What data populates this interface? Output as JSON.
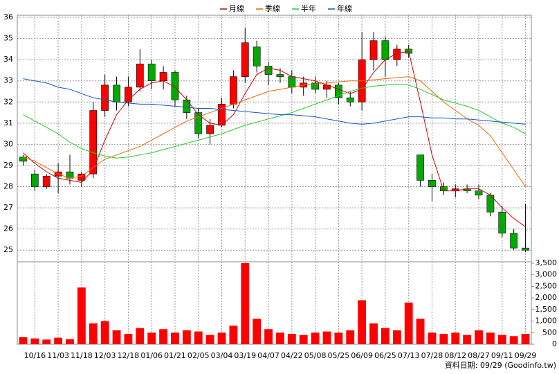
{
  "chart_data": {
    "type": "candlestick",
    "categories": [
      null,
      "10/16",
      null,
      "11/03",
      null,
      "11/18",
      null,
      "12/03",
      null,
      "12/18",
      null,
      "01/06",
      null,
      "01/21",
      null,
      "02/05",
      null,
      "03/04",
      null,
      "03/19",
      null,
      "04/07",
      null,
      "04/22",
      null,
      "05/08",
      null,
      "05/25",
      null,
      "06/09",
      null,
      "06/25",
      null,
      "07/13",
      null,
      "07/28",
      null,
      "08/12",
      null,
      "08/27",
      null,
      "09/11",
      null,
      "09/29"
    ],
    "open": [
      29.4,
      28.6,
      28.0,
      28.5,
      28.7,
      28.3,
      28.6,
      31.6,
      32.8,
      32.0,
      32.7,
      33.8,
      33.0,
      33.4,
      32.1,
      31.5,
      30.5,
      30.9,
      31.9,
      33.2,
      34.6,
      33.7,
      33.3,
      33.2,
      32.7,
      32.9,
      32.6,
      32.8,
      32.2,
      32.0,
      34.0,
      34.9,
      34.0,
      34.5,
      29.5,
      28.3,
      28.0,
      27.8,
      27.9,
      27.8,
      27.6,
      26.8,
      25.8,
      25.1
    ],
    "high": [
      29.5,
      28.8,
      28.6,
      29.1,
      29.5,
      28.7,
      32.0,
      33.3,
      33.2,
      33.2,
      34.5,
      34.0,
      33.7,
      33.5,
      32.3,
      31.7,
      31.2,
      32.2,
      33.5,
      35.5,
      34.9,
      33.9,
      33.6,
      33.5,
      33.2,
      33.2,
      33.0,
      32.9,
      32.5,
      35.3,
      35.3,
      35.1,
      34.7,
      34.7,
      29.5,
      28.6,
      28.2,
      28.1,
      28.1,
      28.1,
      27.7,
      27.1,
      26.0,
      27.2
    ],
    "low": [
      29.0,
      27.8,
      27.9,
      27.7,
      28.1,
      28.0,
      28.4,
      31.3,
      31.6,
      31.8,
      32.5,
      32.6,
      32.6,
      31.8,
      31.2,
      30.3,
      30.0,
      30.8,
      31.7,
      32.9,
      33.4,
      32.8,
      32.9,
      32.4,
      32.3,
      32.4,
      32.2,
      31.9,
      31.8,
      31.6,
      33.5,
      33.2,
      33.7,
      34.1,
      28.0,
      27.3,
      27.6,
      27.5,
      27.7,
      27.4,
      26.6,
      25.6,
      25.0,
      24.9
    ],
    "close": [
      29.2,
      28.0,
      28.5,
      28.7,
      28.4,
      28.6,
      31.6,
      32.8,
      32.0,
      32.7,
      33.8,
      33.0,
      33.4,
      32.1,
      31.5,
      30.5,
      30.9,
      31.9,
      33.2,
      34.8,
      33.7,
      33.3,
      33.2,
      32.7,
      32.9,
      32.6,
      32.8,
      32.2,
      32.0,
      34.0,
      34.9,
      34.0,
      34.5,
      34.3,
      28.3,
      28.0,
      27.8,
      27.9,
      27.8,
      27.6,
      26.8,
      25.8,
      25.1,
      25.0
    ],
    "up_color": "#ff0000",
    "down_color": "#00aa00",
    "ylim": [
      24.45,
      36.1
    ],
    "yticks": [
      25,
      26,
      27,
      28,
      29,
      30,
      31,
      32,
      33,
      34,
      35,
      36
    ],
    "grid": true,
    "series": [
      {
        "name": "月線",
        "color": "#cc0000",
        "values": [
          29.6,
          29.1,
          28.7,
          28.4,
          28.3,
          28.2,
          28.8,
          30.2,
          31.4,
          32.1,
          32.6,
          32.9,
          33.0,
          32.7,
          32.1,
          31.4,
          31.0,
          30.9,
          31.4,
          32.4,
          33.3,
          33.6,
          33.5,
          33.2,
          33.1,
          33.0,
          32.8,
          32.6,
          32.4,
          32.6,
          33.4,
          34.0,
          34.3,
          34.4,
          32.0,
          29.5,
          27.8,
          27.8,
          27.9,
          27.9,
          27.6,
          27.0,
          26.5,
          26.1
        ]
      },
      {
        "name": "季線",
        "color": "#ee6600",
        "values": [
          29.4,
          29.2,
          28.9,
          28.6,
          28.4,
          28.5,
          28.9,
          29.3,
          29.5,
          29.7,
          29.9,
          30.2,
          30.5,
          30.8,
          31.1,
          31.3,
          31.5,
          31.7,
          31.9,
          32.1,
          32.3,
          32.5,
          32.6,
          32.7,
          32.8,
          32.85,
          32.9,
          32.95,
          33.0,
          33.0,
          33.05,
          33.1,
          33.15,
          33.2,
          33.0,
          32.5,
          32.0,
          31.6,
          31.2,
          30.9,
          30.4,
          29.6,
          28.8,
          28.0
        ]
      },
      {
        "name": "半年",
        "color": "#22cc22",
        "values": [
          31.4,
          31.1,
          30.8,
          30.5,
          30.1,
          29.8,
          29.6,
          29.45,
          29.35,
          29.4,
          29.5,
          29.6,
          29.75,
          29.9,
          30.05,
          30.2,
          30.35,
          30.5,
          30.7,
          30.9,
          31.05,
          31.2,
          31.35,
          31.5,
          31.7,
          31.9,
          32.1,
          32.3,
          32.5,
          32.65,
          32.75,
          32.8,
          32.85,
          32.8,
          32.6,
          32.35,
          32.1,
          31.95,
          31.8,
          31.6,
          31.3,
          31.0,
          30.8,
          30.5
        ]
      },
      {
        "name": "年線",
        "color": "#1155cc",
        "values": [
          33.1,
          33.0,
          32.9,
          32.7,
          32.6,
          32.4,
          32.2,
          32.1,
          32.0,
          31.95,
          31.9,
          31.9,
          31.85,
          31.8,
          31.75,
          31.7,
          31.7,
          31.65,
          31.6,
          31.55,
          31.5,
          31.45,
          31.4,
          31.4,
          31.35,
          31.3,
          31.2,
          31.1,
          31.0,
          30.95,
          31.0,
          31.1,
          31.2,
          31.3,
          31.3,
          31.25,
          31.25,
          31.2,
          31.2,
          31.15,
          31.1,
          31.05,
          31.0,
          30.95
        ]
      }
    ],
    "volume": {
      "color": "#ff0000",
      "values": [
        300,
        250,
        200,
        280,
        220,
        2450,
        900,
        1000,
        600,
        450,
        700,
        500,
        650,
        500,
        600,
        550,
        400,
        500,
        800,
        3500,
        1100,
        650,
        500,
        450,
        400,
        500,
        550,
        500,
        600,
        1900,
        900,
        700,
        600,
        1800,
        1100,
        500,
        450,
        500,
        400,
        600,
        500,
        400,
        350,
        450
      ],
      "ylim": [
        0,
        3500
      ],
      "yticks": [
        0,
        500,
        {
          "value": 1000,
          "label": "1,000"
        },
        {
          "value": 1500,
          "label": "1,500"
        },
        {
          "value": 2000,
          "label": "2,000"
        },
        {
          "value": 2500,
          "label": "2,500"
        },
        {
          "value": 3000,
          "label": "3,000"
        },
        {
          "value": 3500,
          "label": "3,500"
        }
      ]
    },
    "source": "資料日期: 09/29 (Goodinfo.tw)"
  }
}
